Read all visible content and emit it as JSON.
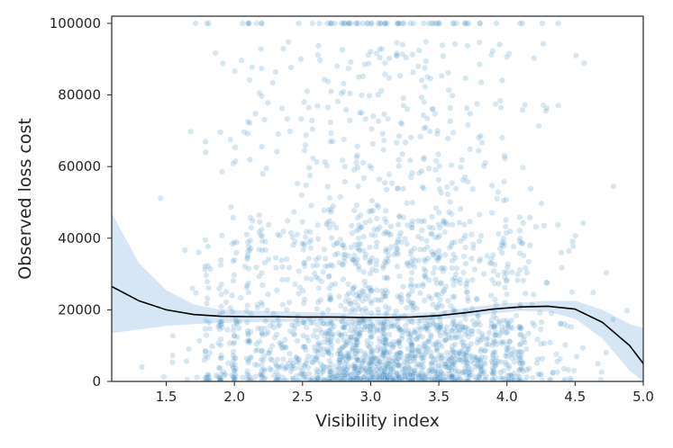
{
  "chart_data": {
    "type": "scatter",
    "title": "",
    "xlabel": "Visibility index",
    "ylabel": "Observed loss cost",
    "xlim": [
      1.1,
      5.0
    ],
    "ylim": [
      0,
      102000
    ],
    "x_ticks": [
      {
        "value": 1.5,
        "label": "1.5"
      },
      {
        "value": 2.0,
        "label": "2.0"
      },
      {
        "value": 2.5,
        "label": "2.5"
      },
      {
        "value": 3.0,
        "label": "3.0"
      },
      {
        "value": 3.5,
        "label": "3.5"
      },
      {
        "value": 4.0,
        "label": "4.0"
      },
      {
        "value": 4.5,
        "label": "4.5"
      },
      {
        "value": 5.0,
        "label": "5.0"
      }
    ],
    "y_ticks": [
      {
        "value": 0,
        "label": "0"
      },
      {
        "value": 20000,
        "label": "20000"
      },
      {
        "value": 40000,
        "label": "40000"
      },
      {
        "value": 60000,
        "label": "60000"
      },
      {
        "value": 80000,
        "label": "80000"
      },
      {
        "value": 100000,
        "label": "100000"
      }
    ],
    "grid": false,
    "legend": "none",
    "colors": {
      "points": "#4a90c2",
      "trend": "#000000",
      "band": "#c6dcef",
      "axis": "#262626"
    },
    "scatter": {
      "approx_point_count": 2500,
      "capped_value": 100000,
      "dense_x_values": [
        1.8,
        1.9,
        2.0,
        2.1,
        2.2,
        2.7,
        2.8,
        2.9,
        3.0,
        3.1,
        3.2,
        3.3,
        3.4,
        3.5,
        3.6,
        3.7,
        3.8,
        3.9,
        4.0,
        4.1
      ]
    },
    "series": [
      {
        "kind": "trend",
        "x": [
          1.1,
          1.3,
          1.5,
          1.7,
          1.9,
          2.1,
          2.3,
          2.5,
          2.7,
          2.9,
          3.1,
          3.3,
          3.5,
          3.7,
          3.9,
          4.1,
          4.3,
          4.5,
          4.7,
          4.9,
          5.0
        ],
        "y": [
          26500,
          22500,
          20000,
          18700,
          18200,
          18100,
          18100,
          18000,
          18000,
          17900,
          17900,
          18000,
          18400,
          19200,
          20200,
          20800,
          21000,
          20200,
          16500,
          10000,
          5000
        ]
      },
      {
        "kind": "confidence-band-upper",
        "x": [
          1.1,
          1.3,
          1.5,
          1.7,
          1.9,
          2.1,
          2.3,
          2.5,
          2.7,
          2.9,
          3.1,
          3.3,
          3.5,
          3.7,
          3.9,
          4.1,
          4.3,
          4.5,
          4.7,
          4.9,
          5.0
        ],
        "y": [
          47000,
          33000,
          25500,
          21500,
          20000,
          19800,
          19600,
          19400,
          19200,
          19000,
          18900,
          19000,
          19500,
          20500,
          21500,
          22000,
          22500,
          22500,
          20000,
          16000,
          15000
        ]
      },
      {
        "kind": "confidence-band-lower",
        "x": [
          1.1,
          1.3,
          1.5,
          1.7,
          1.9,
          2.1,
          2.3,
          2.5,
          2.7,
          2.9,
          3.1,
          3.3,
          3.5,
          3.7,
          3.9,
          4.1,
          4.3,
          4.5,
          4.7,
          4.9,
          5.0
        ],
        "y": [
          13500,
          14500,
          15500,
          16000,
          16400,
          16500,
          16600,
          16700,
          16800,
          16900,
          16900,
          17000,
          17300,
          18000,
          19000,
          19700,
          19500,
          17500,
          12000,
          3000,
          0
        ]
      }
    ]
  }
}
